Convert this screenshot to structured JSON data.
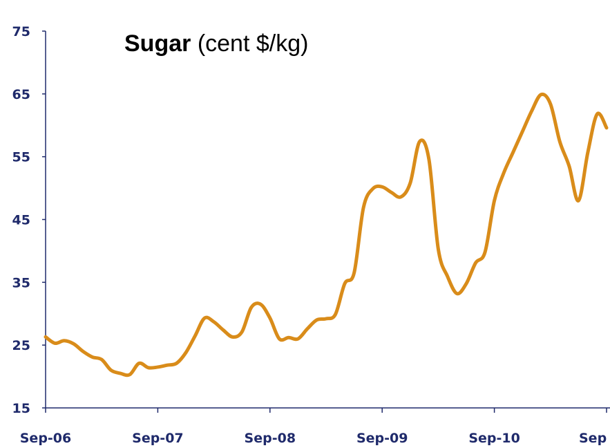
{
  "chart_data": {
    "type": "line",
    "title": "Sugar",
    "unit": "(cent $/kg)",
    "categories": [
      "Sep-06",
      null,
      null,
      null,
      null,
      null,
      null,
      null,
      null,
      null,
      null,
      null,
      "Sep-07",
      null,
      null,
      null,
      null,
      null,
      null,
      null,
      null,
      null,
      null,
      null,
      "Sep-08",
      null,
      null,
      null,
      null,
      null,
      null,
      null,
      null,
      null,
      null,
      null,
      "Sep-09",
      null,
      null,
      null,
      null,
      null,
      null,
      null,
      null,
      null,
      null,
      null,
      "Sep-10",
      null,
      null,
      null,
      null,
      null,
      null,
      null,
      null,
      null,
      null,
      null,
      "Sep"
    ],
    "series": [
      {
        "name": "Sugar",
        "color": "#d98c1a",
        "values": [
          26.3,
          25.3,
          25.7,
          25.2,
          24.0,
          23.1,
          22.7,
          21.0,
          20.5,
          20.3,
          22.1,
          21.4,
          21.5,
          21.8,
          22.1,
          23.8,
          26.5,
          29.3,
          28.7,
          27.4,
          26.3,
          27.1,
          31.0,
          31.5,
          29.3,
          26.0,
          26.2,
          26.0,
          27.6,
          29.0,
          29.2,
          29.9,
          34.8,
          36.5,
          46.9,
          49.9,
          50.2,
          49.3,
          48.6,
          50.8,
          57.4,
          54.6,
          40.3,
          35.9,
          33.2,
          34.8,
          38.1,
          39.8,
          48.0,
          52.4,
          55.7,
          59.0,
          62.3,
          64.9,
          63.4,
          57.4,
          53.5,
          48.0,
          55.7,
          61.8,
          59.6
        ]
      }
    ],
    "ylim": [
      15,
      75
    ],
    "yticks": [
      15,
      25,
      35,
      45,
      55,
      65,
      75
    ],
    "grid": false
  }
}
